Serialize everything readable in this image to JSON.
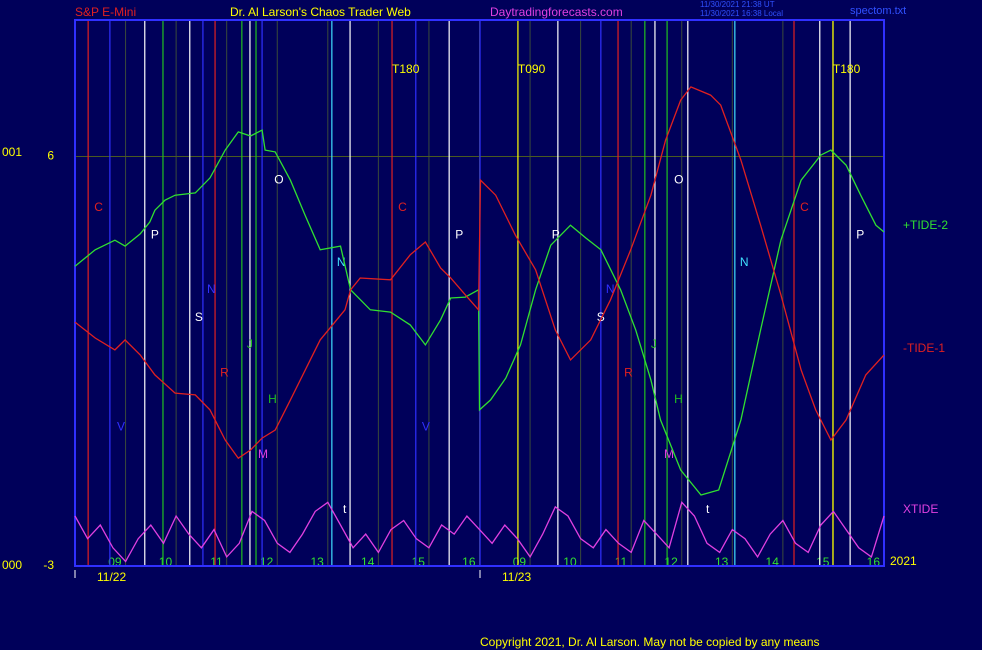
{
  "header": {
    "instrument": "S&P E-Mini",
    "title": "Dr. Al Larson's Chaos Trader Web",
    "site": "Daytradingforecasts.com",
    "stamp_ut": "11/30/2021 21:38 UT",
    "stamp_local": "11/30/2021 16:38 Local",
    "file": "spectom.txt",
    "year": "2021",
    "copyright": "Copyright 2021, Dr. Al Larson. May not be copied by any means",
    "left_top": "001",
    "left_bottom": "000"
  },
  "chart_data": {
    "type": "line",
    "xlim": [
      0,
      16
    ],
    "ylim": [
      -3,
      9
    ],
    "yticks": [
      -3,
      6
    ],
    "xticks": [
      {
        "value": 1,
        "label": "09"
      },
      {
        "value": 2,
        "label": "10"
      },
      {
        "value": 3,
        "label": "11"
      },
      {
        "value": 4,
        "label": "12"
      },
      {
        "value": 5,
        "label": "13"
      },
      {
        "value": 6,
        "label": "14"
      },
      {
        "value": 7,
        "label": "15"
      },
      {
        "value": 8,
        "label": "16"
      },
      {
        "value": 9,
        "label": "09"
      },
      {
        "value": 10,
        "label": "10"
      },
      {
        "value": 11,
        "label": "11"
      },
      {
        "value": 12,
        "label": "12"
      },
      {
        "value": 13,
        "label": "13"
      },
      {
        "value": 14,
        "label": "14"
      },
      {
        "value": 15,
        "label": "15"
      },
      {
        "value": 16,
        "label": "16"
      }
    ],
    "days": [
      {
        "x": 0,
        "label": "11/22"
      },
      {
        "x": 8.01,
        "label": "11/23"
      }
    ],
    "grid": true,
    "series": [
      {
        "name": "+TIDE-2",
        "color": "#30e030",
        "x": [
          0,
          0.4,
          0.79,
          0.99,
          1.29,
          1.48,
          1.58,
          1.78,
          1.98,
          2.38,
          2.67,
          2.97,
          3.23,
          3.47,
          3.7,
          3.76,
          3.96,
          4.26,
          4.55,
          4.85,
          5.25,
          5.45,
          5.84,
          6.24,
          6.63,
          6.93,
          7.23,
          7.43,
          7.72,
          7.98,
          8.0,
          8.22,
          8.52,
          8.81,
          9.11,
          9.41,
          9.8,
          10.1,
          10.4,
          10.79,
          11.09,
          11.39,
          11.58,
          11.98,
          12.38,
          12.73,
          13.17,
          13.56,
          13.96,
          14.36,
          14.75,
          14.95,
          15.25,
          15.54,
          15.84,
          16.0
        ],
        "values": [
          3.59,
          3.95,
          4.16,
          4.03,
          4.3,
          4.56,
          4.82,
          5.04,
          5.15,
          5.2,
          5.53,
          6.14,
          6.54,
          6.45,
          6.58,
          6.14,
          6.1,
          5.48,
          4.71,
          3.95,
          4.03,
          3.07,
          2.63,
          2.58,
          2.3,
          1.86,
          2.41,
          2.89,
          2.91,
          3.07,
          0.43,
          0.65,
          1.13,
          1.86,
          3.07,
          4.05,
          4.49,
          4.21,
          3.95,
          3.07,
          2.19,
          1.09,
          0.21,
          -0.89,
          -1.44,
          -1.33,
          0.21,
          2.19,
          4.16,
          5.48,
          6.03,
          6.14,
          5.81,
          5.15,
          4.49,
          4.34
        ]
      },
      {
        "name": "-TIDE-1",
        "color": "#e02020",
        "x": [
          0,
          0.4,
          0.79,
          0.99,
          1.29,
          1.58,
          1.98,
          2.38,
          2.67,
          2.97,
          3.23,
          3.47,
          3.7,
          3.96,
          4.26,
          4.85,
          5.34,
          5.45,
          5.64,
          6.24,
          6.63,
          6.93,
          7.23,
          7.43,
          7.72,
          7.98,
          8.02,
          8.32,
          8.71,
          9.11,
          9.5,
          9.8,
          10.2,
          10.59,
          10.99,
          11.39,
          11.68,
          11.98,
          12.18,
          12.57,
          12.77,
          13.17,
          13.56,
          13.96,
          14.36,
          14.65,
          14.95,
          15.25,
          15.64,
          16.0
        ],
        "values": [
          2.36,
          2.01,
          1.75,
          1.97,
          1.64,
          1.2,
          0.8,
          0.76,
          0.43,
          -0.23,
          -0.63,
          -0.45,
          -0.19,
          -0.01,
          0.65,
          1.97,
          2.63,
          3.07,
          3.33,
          3.29,
          3.84,
          4.12,
          3.55,
          3.33,
          2.96,
          2.63,
          5.48,
          5.15,
          4.27,
          3.51,
          2.19,
          1.53,
          1.97,
          2.85,
          3.95,
          5.15,
          6.36,
          7.24,
          7.53,
          7.35,
          7.13,
          5.92,
          4.49,
          2.96,
          1.31,
          0.43,
          -0.23,
          0.21,
          1.2,
          1.64
        ]
      },
      {
        "name": "XTIDE",
        "color": "#e040e0",
        "x": [
          0,
          0.25,
          0.5,
          0.75,
          1,
          1.25,
          1.5,
          1.75,
          2,
          2.25,
          2.5,
          2.75,
          3,
          3.25,
          3.5,
          3.75,
          4,
          4.25,
          4.5,
          4.75,
          5,
          5.25,
          5.5,
          5.75,
          6,
          6.25,
          6.5,
          6.75,
          7,
          7.25,
          7.5,
          7.75,
          8,
          8.25,
          8.5,
          8.75,
          9,
          9.25,
          9.5,
          9.75,
          10,
          10.25,
          10.5,
          10.75,
          11,
          11.25,
          11.5,
          11.75,
          12,
          12.25,
          12.5,
          12.75,
          13,
          13.25,
          13.5,
          13.75,
          14,
          14.25,
          14.5,
          14.75,
          15,
          15.25,
          15.5,
          15.75,
          16
        ],
        "values": [
          -1.9,
          -2.4,
          -2.1,
          -2.6,
          -2.9,
          -2.4,
          -2.1,
          -2.5,
          -1.9,
          -2.3,
          -2.6,
          -2.2,
          -2.8,
          -2.5,
          -1.8,
          -2.0,
          -2.5,
          -2.7,
          -2.3,
          -1.8,
          -1.6,
          -2.1,
          -2.6,
          -2.3,
          -2.7,
          -2.2,
          -2.0,
          -2.4,
          -2.6,
          -2.1,
          -2.3,
          -1.9,
          -2.2,
          -2.5,
          -2.1,
          -2.4,
          -2.8,
          -2.3,
          -1.7,
          -1.9,
          -2.4,
          -2.6,
          -2.2,
          -2.5,
          -2.7,
          -2.0,
          -2.3,
          -2.6,
          -1.6,
          -1.9,
          -2.5,
          -2.7,
          -2.2,
          -2.4,
          -2.8,
          -2.3,
          -2.0,
          -2.5,
          -2.7,
          -2.1,
          -1.8,
          -2.2,
          -2.6,
          -2.8,
          -1.9
        ]
      }
    ],
    "events": [
      {
        "x": 0.26,
        "color": "#e02020"
      },
      {
        "x": 0.69,
        "color": "#3030ff"
      },
      {
        "x": 1.38,
        "color": "#ffffff"
      },
      {
        "x": 1.74,
        "color": "#20c020"
      },
      {
        "x": 2.27,
        "color": "#ffffff"
      },
      {
        "x": 2.53,
        "color": "#3030ff"
      },
      {
        "x": 2.77,
        "color": "#e02020"
      },
      {
        "x": 3.3,
        "color": "#20c020"
      },
      {
        "x": 3.46,
        "color": "#ffffff"
      },
      {
        "x": 3.58,
        "color": "#20c020"
      },
      {
        "x": 3.7,
        "color": "#3030ff"
      },
      {
        "x": 5.08,
        "color": "#40e0ff"
      },
      {
        "x": 5.44,
        "color": "#ffffff"
      },
      {
        "x": 6.27,
        "color": "#e02020"
      },
      {
        "x": 6.74,
        "color": "#3030ff"
      },
      {
        "x": 7.4,
        "color": "#ffffff"
      },
      {
        "x": 8.01,
        "color": "#3030ff"
      },
      {
        "x": 8.76,
        "color": "#ffff00"
      },
      {
        "x": 9.55,
        "color": "#ffffff"
      },
      {
        "x": 10.4,
        "color": "#3030ff"
      },
      {
        "x": 10.74,
        "color": "#e02020"
      },
      {
        "x": 11.27,
        "color": "#20c020"
      },
      {
        "x": 11.47,
        "color": "#ffffff"
      },
      {
        "x": 11.71,
        "color": "#20c020"
      },
      {
        "x": 12.12,
        "color": "#ffffff"
      },
      {
        "x": 13.05,
        "color": "#40e0ff"
      },
      {
        "x": 14.22,
        "color": "#e02020"
      },
      {
        "x": 14.73,
        "color": "#ffffff"
      },
      {
        "x": 14.99,
        "color": "#ffff00"
      },
      {
        "x": 15.33,
        "color": "#ffffff"
      }
    ],
    "annotations": [
      {
        "text": "T180",
        "x": 6.27,
        "y": 7.9,
        "color": "#ffff00"
      },
      {
        "text": "T090",
        "x": 8.76,
        "y": 7.9,
        "color": "#ffff00"
      },
      {
        "text": "T180",
        "x": 14.99,
        "y": 7.9,
        "color": "#ffff00"
      },
      {
        "text": "C",
        "x": 0.38,
        "y": 4.87,
        "color": "#e02020"
      },
      {
        "text": "P",
        "x": 1.5,
        "y": 4.27,
        "color": "#ffffff"
      },
      {
        "text": "S",
        "x": 2.37,
        "y": 2.45,
        "color": "#ffffff"
      },
      {
        "text": "N",
        "x": 2.61,
        "y": 3.07,
        "color": "#3030ff"
      },
      {
        "text": "J",
        "x": 3.4,
        "y": 1.86,
        "color": "#20c020"
      },
      {
        "text": "R",
        "x": 2.87,
        "y": 1.24,
        "color": "#e02020"
      },
      {
        "text": "H",
        "x": 3.82,
        "y": 0.65,
        "color": "#20c020"
      },
      {
        "text": "V",
        "x": 0.83,
        "y": 0.05,
        "color": "#3030ff"
      },
      {
        "text": "M",
        "x": 3.62,
        "y": -0.56,
        "color": "#e040e0"
      },
      {
        "text": "O",
        "x": 3.94,
        "y": 5.48,
        "color": "#ffffff"
      },
      {
        "text": "N",
        "x": 5.18,
        "y": 3.66,
        "color": "#40e0ff"
      },
      {
        "text": "t",
        "x": 5.3,
        "y": -1.77,
        "color": "#ffffff"
      },
      {
        "text": "C",
        "x": 6.39,
        "y": 4.87,
        "color": "#e02020"
      },
      {
        "text": "P",
        "x": 7.52,
        "y": 4.27,
        "color": "#ffffff"
      },
      {
        "text": "V",
        "x": 6.86,
        "y": 0.05,
        "color": "#3030ff"
      },
      {
        "text": "P",
        "x": 9.43,
        "y": 4.27,
        "color": "#ffffff"
      },
      {
        "text": "S",
        "x": 10.32,
        "y": 2.45,
        "color": "#ffffff"
      },
      {
        "text": "N",
        "x": 10.5,
        "y": 3.07,
        "color": "#3030ff"
      },
      {
        "text": "J",
        "x": 11.39,
        "y": 1.86,
        "color": "#20c020"
      },
      {
        "text": "R",
        "x": 10.86,
        "y": 1.24,
        "color": "#e02020"
      },
      {
        "text": "H",
        "x": 11.85,
        "y": 0.65,
        "color": "#20c020"
      },
      {
        "text": "M",
        "x": 11.65,
        "y": -0.56,
        "color": "#e040e0"
      },
      {
        "text": "O",
        "x": 11.85,
        "y": 5.48,
        "color": "#ffffff"
      },
      {
        "text": "N",
        "x": 13.15,
        "y": 3.66,
        "color": "#40e0ff"
      },
      {
        "text": "t",
        "x": 12.48,
        "y": -1.77,
        "color": "#ffffff"
      },
      {
        "text": "C",
        "x": 14.34,
        "y": 4.87,
        "color": "#e02020"
      },
      {
        "text": "P",
        "x": 15.45,
        "y": 4.27,
        "color": "#ffffff"
      }
    ]
  }
}
